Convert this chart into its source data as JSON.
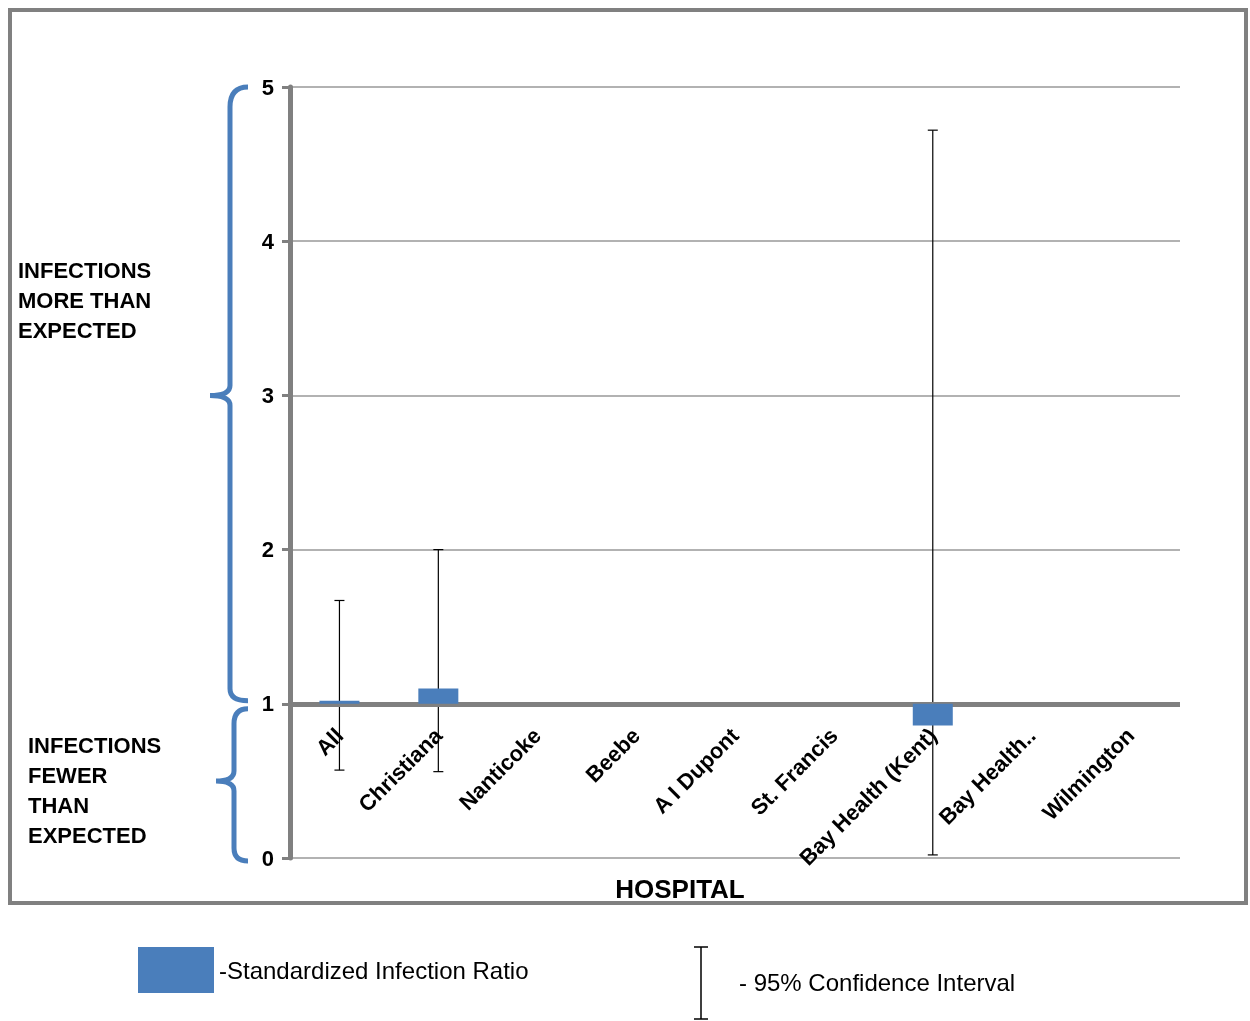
{
  "chart_data": {
    "type": "bar",
    "xlabel": "HOSPITAL",
    "categories": [
      "All",
      "Christiana",
      "Nanticoke",
      "Beebe",
      "A I Dupont",
      "St. Francis",
      "Bay Health (Kent)",
      "Bay Health..",
      "Wilmington"
    ],
    "series": [
      {
        "name": "-Standardized Infection Ratio",
        "color": "#4a7ebb",
        "base": [
          1,
          1,
          null,
          null,
          null,
          null,
          1,
          null,
          null
        ],
        "values": [
          0.02,
          0.1,
          null,
          null,
          null,
          null,
          -0.14,
          null,
          null
        ],
        "errors": [
          [
            0.57,
            1.67
          ],
          [
            0.56,
            2.0
          ],
          null,
          null,
          null,
          null,
          [
            0.02,
            4.72
          ],
          null,
          null
        ]
      }
    ],
    "ylim": [
      0,
      5
    ],
    "yticks": [
      0,
      1,
      2,
      3,
      4,
      5
    ],
    "grid": "y",
    "ref_lines": [
      {
        "axis": "y",
        "value": 1,
        "color": "#808080"
      }
    ],
    "legend": "bottom",
    "annotations": [
      "INFECTIONS\nMORE THAN\nEXPECTED",
      "INFECTIONS\nFEWER\nTHAN\nEXPECTED",
      "- 95% Confidence Interval"
    ]
  }
}
